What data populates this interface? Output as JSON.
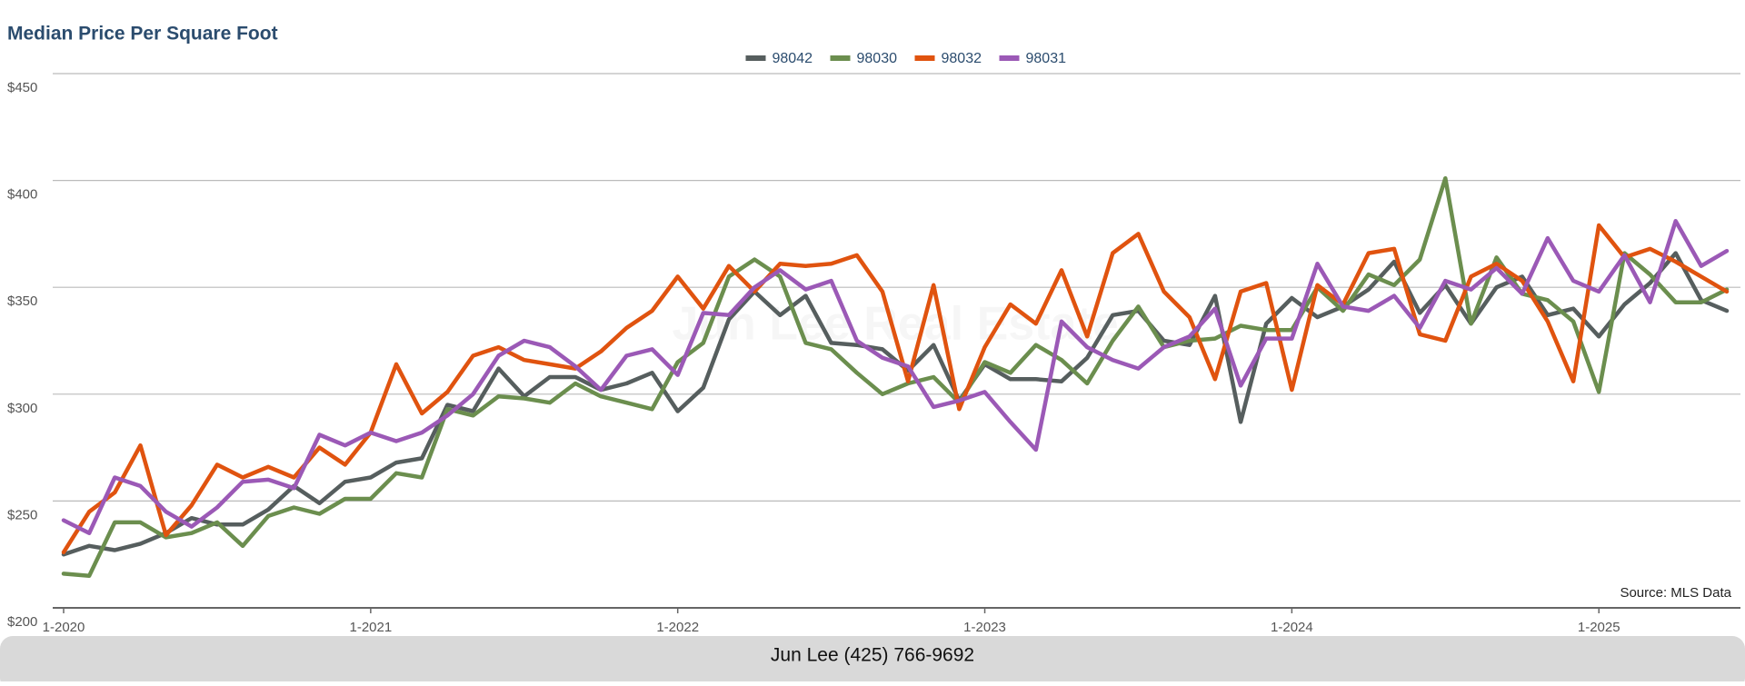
{
  "chart_data": {
    "type": "line",
    "title": "Median Price Per Square Foot",
    "watermark": "Jun Lee Real Estate",
    "source": "Source: MLS Data",
    "categories": [
      "1-2020",
      null,
      null,
      null,
      null,
      null,
      null,
      null,
      null,
      null,
      null,
      null,
      "1-2021",
      null,
      null,
      null,
      null,
      null,
      null,
      null,
      null,
      null,
      null,
      null,
      "1-2022",
      null,
      null,
      null,
      null,
      null,
      null,
      null,
      null,
      null,
      null,
      null,
      "1-2023",
      null,
      null,
      null,
      null,
      null,
      null,
      null,
      null,
      null,
      null,
      null,
      "1-2024",
      null,
      null,
      null,
      null,
      null,
      null,
      null,
      null,
      null,
      null,
      null,
      "1-2025",
      null,
      null,
      null,
      null,
      null
    ],
    "series": [
      {
        "name": "98042",
        "color": "#565e5e",
        "values": [
          225,
          229,
          227,
          230,
          235,
          242,
          239,
          239,
          246,
          257,
          249,
          259,
          261,
          268,
          270,
          295,
          292,
          312,
          299,
          308,
          308,
          302,
          305,
          310,
          292,
          303,
          335,
          348,
          337,
          346,
          324,
          323,
          321,
          311,
          323,
          297,
          314,
          307,
          307,
          306,
          317,
          337,
          339,
          325,
          323,
          346,
          287,
          333,
          345,
          336,
          341,
          349,
          362,
          338,
          351,
          333,
          350,
          355,
          337,
          340,
          327,
          342,
          352,
          366,
          344,
          339
        ]
      },
      {
        "name": "98030",
        "color": "#6b8e4e",
        "values": [
          216,
          215,
          240,
          240,
          233,
          235,
          240,
          229,
          243,
          247,
          244,
          251,
          251,
          263,
          261,
          293,
          290,
          299,
          298,
          296,
          305,
          299,
          296,
          293,
          315,
          324,
          355,
          363,
          355,
          324,
          321,
          310,
          300,
          305,
          308,
          296,
          315,
          310,
          323,
          316,
          305,
          325,
          341,
          322,
          325,
          326,
          332,
          330,
          330,
          350,
          339,
          356,
          351,
          363,
          401,
          333,
          364,
          347,
          344,
          334,
          301,
          366,
          356,
          343,
          343,
          349
        ]
      },
      {
        "name": "98032",
        "color": "#e0530f",
        "values": [
          226,
          245,
          254,
          276,
          234,
          248,
          267,
          261,
          266,
          261,
          275,
          267,
          282,
          314,
          291,
          301,
          318,
          322,
          316,
          314,
          312,
          320,
          331,
          339,
          355,
          340,
          360,
          348,
          361,
          360,
          361,
          365,
          348,
          306,
          351,
          293,
          322,
          342,
          333,
          358,
          327,
          366,
          375,
          348,
          336,
          307,
          348,
          352,
          302,
          351,
          342,
          366,
          368,
          328,
          325,
          355,
          361,
          353,
          334,
          306,
          379,
          364,
          368,
          362,
          355,
          348
        ]
      },
      {
        "name": "98031",
        "color": "#9b59b6",
        "values": [
          241,
          235,
          261,
          257,
          245,
          238,
          247,
          259,
          260,
          256,
          281,
          276,
          282,
          278,
          282,
          290,
          300,
          318,
          325,
          322,
          313,
          302,
          318,
          321,
          309,
          338,
          337,
          350,
          358,
          349,
          353,
          325,
          317,
          313,
          294,
          297,
          301,
          287,
          274,
          334,
          322,
          316,
          312,
          322,
          327,
          340,
          304,
          326,
          326,
          361,
          341,
          339,
          346,
          331,
          353,
          349,
          359,
          347,
          373,
          353,
          348,
          365,
          343,
          381,
          360,
          367
        ]
      }
    ],
    "ylim": [
      200,
      450
    ],
    "yticks": [
      {
        "value": 200,
        "label": "$200"
      },
      {
        "value": 250,
        "label": "$250"
      },
      {
        "value": 300,
        "label": "$300"
      },
      {
        "value": 350,
        "label": "$350"
      },
      {
        "value": 400,
        "label": "$400"
      },
      {
        "value": 450,
        "label": "$450"
      }
    ],
    "grid": true,
    "legend": "top"
  },
  "footer": {
    "contact": "Jun Lee (425) 766-9692"
  }
}
